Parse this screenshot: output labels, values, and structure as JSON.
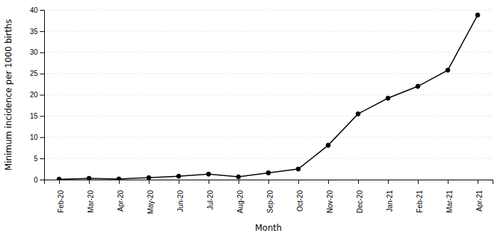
{
  "chart_data": {
    "type": "line",
    "categories": [
      "Feb-20",
      "Mar-20",
      "Apr-20",
      "May-20",
      "Jun-20",
      "Jul-20",
      "Aug-20",
      "Sep-20",
      "Oct-20",
      "Nov-20",
      "Dec-20",
      "Jan-21",
      "Feb-21",
      "Mar-21",
      "Apr-21"
    ],
    "values": [
      0.1,
      0.3,
      0.15,
      0.45,
      0.8,
      1.3,
      0.65,
      1.6,
      2.5,
      8.1,
      15.5,
      19.2,
      22.0,
      25.8,
      38.8
    ],
    "x_label": "Month",
    "y_label": "Minimum incidence per 1000 births",
    "ylim": [
      0,
      40
    ],
    "yticks": [
      0,
      5,
      10,
      15,
      20,
      25,
      30,
      35,
      40
    ],
    "color": "#000000",
    "marker": "circle",
    "grid": true
  }
}
